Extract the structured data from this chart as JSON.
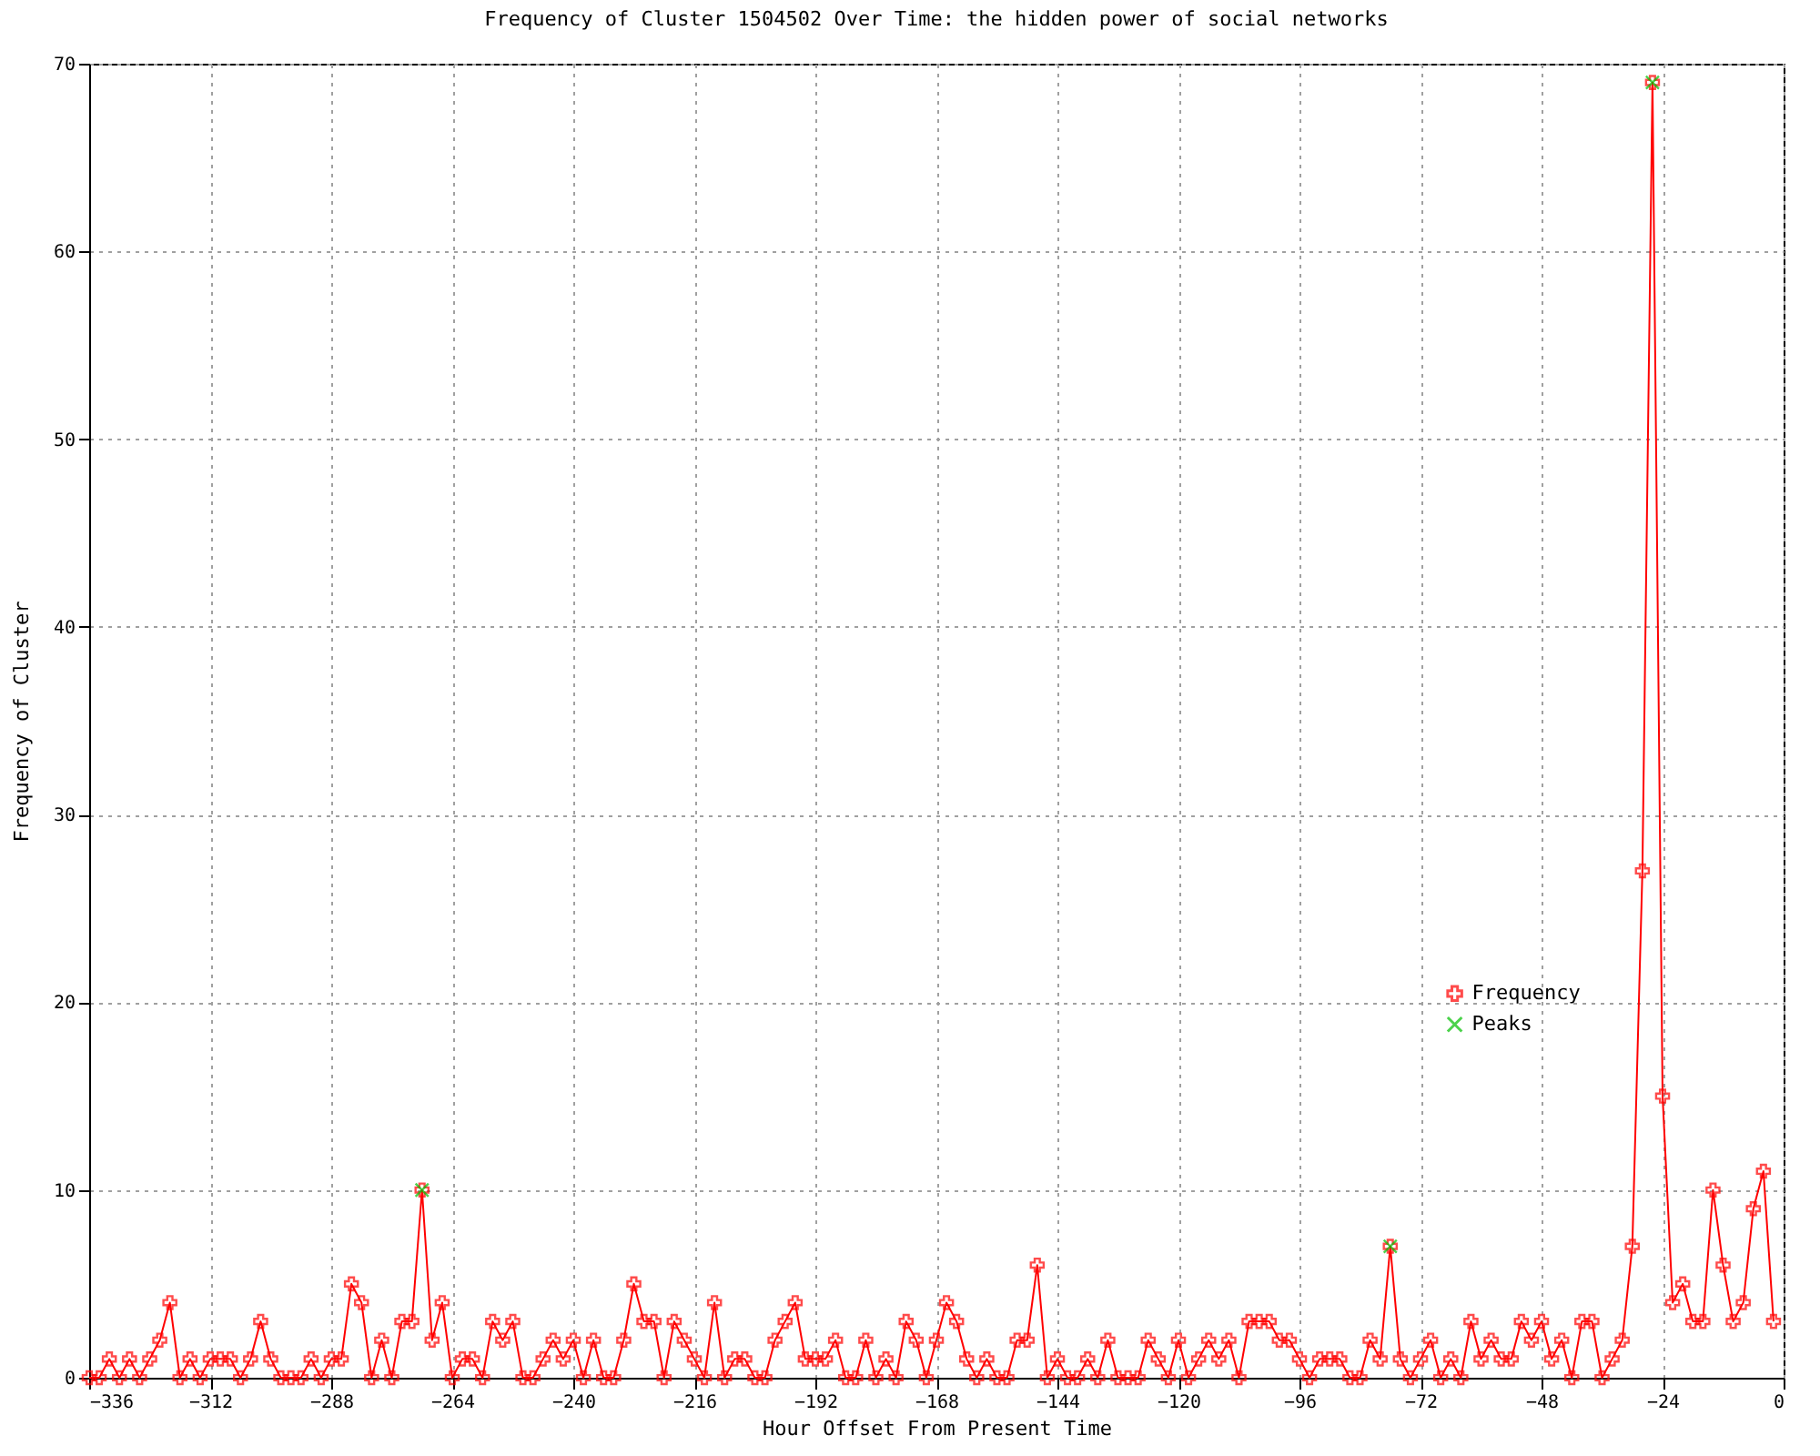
{
  "chart_data": {
    "type": "line",
    "title": "Frequency of Cluster 1504502 Over Time: the hidden power of social networks",
    "xlabel": "Hour Offset From Present Time",
    "ylabel": "Frequency of Cluster",
    "x": [
      -336,
      -334,
      -332,
      -330,
      -328,
      -326,
      -324,
      -322,
      -320,
      -318,
      -316,
      -314,
      -312,
      -310,
      -308,
      -306,
      -304,
      -302,
      -300,
      -298,
      -296,
      -294,
      -292,
      -290,
      -288,
      -286,
      -284,
      -282,
      -280,
      -278,
      -276,
      -274,
      -272,
      -270,
      -268,
      -266,
      -264,
      -262,
      -260,
      -258,
      -256,
      -254,
      -252,
      -250,
      -248,
      -246,
      -244,
      -242,
      -240,
      -238,
      -236,
      -234,
      -232,
      -230,
      -228,
      -226,
      -224,
      -222,
      -220,
      -218,
      -216,
      -214,
      -212,
      -210,
      -208,
      -206,
      -204,
      -202,
      -200,
      -198,
      -196,
      -194,
      -192,
      -190,
      -188,
      -186,
      -184,
      -182,
      -180,
      -178,
      -176,
      -174,
      -172,
      -170,
      -168,
      -166,
      -164,
      -162,
      -160,
      -158,
      -156,
      -154,
      -152,
      -150,
      -148,
      -146,
      -144,
      -142,
      -140,
      -138,
      -136,
      -134,
      -132,
      -130,
      -128,
      -126,
      -124,
      -122,
      -120,
      -118,
      -116,
      -114,
      -112,
      -110,
      -108,
      -106,
      -104,
      -102,
      -100,
      -98,
      -96,
      -94,
      -92,
      -90,
      -88,
      -86,
      -84,
      -82,
      -80,
      -78,
      -76,
      -74,
      -72,
      -70,
      -68,
      -66,
      -64,
      -62,
      -60,
      -58,
      -56,
      -54,
      -52,
      -50,
      -48,
      -46,
      -44,
      -42,
      -40,
      -38,
      -36,
      -34,
      -32,
      -30,
      -28,
      -26,
      -24,
      -22,
      -20,
      -18,
      -16,
      -14,
      -12,
      -10,
      -8,
      -6,
      -4,
      -2
    ],
    "series": [
      {
        "name": "Frequency",
        "type": "line",
        "color": "#ff0000",
        "marker": "cross",
        "values": [
          0,
          0,
          1,
          0,
          1,
          0,
          1,
          2,
          4,
          0,
          1,
          0,
          1,
          1,
          1,
          0,
          1,
          3,
          1,
          0,
          0,
          0,
          1,
          0,
          1,
          1,
          5,
          4,
          0,
          2,
          0,
          3,
          3,
          10,
          2,
          4,
          0,
          1,
          1,
          0,
          3,
          2,
          3,
          0,
          0,
          1,
          2,
          1,
          2,
          0,
          2,
          0,
          0,
          2,
          5,
          3,
          3,
          0,
          3,
          2,
          1,
          0,
          4,
          0,
          1,
          1,
          0,
          0,
          2,
          3,
          4,
          1,
          1,
          1,
          2,
          0,
          0,
          2,
          0,
          1,
          0,
          3,
          2,
          0,
          2,
          4,
          3,
          1,
          0,
          1,
          0,
          0,
          2,
          2,
          6,
          0,
          1,
          0,
          0,
          1,
          0,
          2,
          0,
          0,
          0,
          2,
          1,
          0,
          2,
          0,
          1,
          2,
          1,
          2,
          0,
          3,
          3,
          3,
          2,
          2,
          1,
          0,
          1,
          1,
          1,
          0,
          0,
          2,
          1,
          7,
          1,
          0,
          1,
          2,
          0,
          1,
          0,
          3,
          1,
          2,
          1,
          1,
          3,
          2,
          3,
          1,
          2,
          0,
          3,
          3,
          0,
          1,
          2,
          7,
          27,
          69,
          15,
          4,
          5,
          3,
          3,
          10,
          6,
          3,
          4,
          9,
          11,
          3
        ]
      },
      {
        "name": "Peaks",
        "type": "scatter",
        "color": "#00c000",
        "marker": "x",
        "x": [
          -270,
          -78,
          -26
        ],
        "values": [
          10,
          7,
          69
        ]
      }
    ],
    "xlim": [
      -336,
      0
    ],
    "xticks": [
      -336,
      -312,
      -288,
      -264,
      -240,
      -216,
      -192,
      -168,
      -144,
      -120,
      -96,
      -72,
      -48,
      -24,
      0
    ],
    "ylim": [
      0,
      70
    ],
    "yticks": [
      0,
      10,
      20,
      30,
      40,
      50,
      60,
      70
    ],
    "grid": true,
    "legend": "bottom right",
    "line_style": "solid"
  }
}
